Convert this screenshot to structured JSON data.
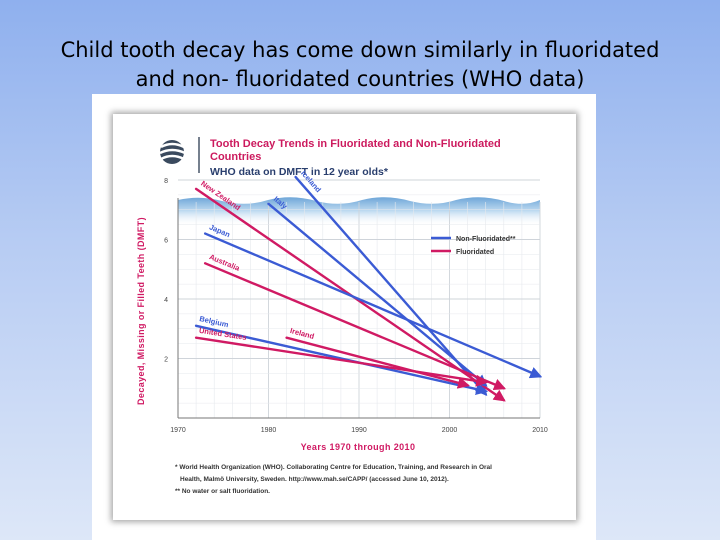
{
  "slide": {
    "title_line1": "Child tooth decay has come down similarly in fluoridated",
    "title_line2": "and non- fluoridated countries (WHO data)"
  },
  "figure": {
    "logo_icon": "globe-logo-icon",
    "title_line1": "Tooth Decay Trends in Fluoridated and Non-Fluoridated",
    "title_line2": "Countries",
    "subtitle": "WHO data on DMFT in 12 year olds*",
    "footnote_line1": "* World Health Organization (WHO). Collaborating Centre for Education, Training, and Research in Oral",
    "footnote_line2": "Health, Malmö University, Sweden. http://www.mah.se/CAPP/ (accessed June 10, 2012).",
    "footnote_line3": "** No water or salt fluoridation."
  },
  "chart_data": {
    "type": "line",
    "title": "Tooth Decay Trends in Fluoridated and Non-Fluoridated Countries",
    "subtitle": "WHO data on DMFT in 12 year olds*",
    "xlabel": "Years 1970 through 2010",
    "ylabel": "Decayed, Missing or Filled Teeth (DMFT)",
    "xlim": [
      1970,
      2010
    ],
    "ylim": [
      0,
      8
    ],
    "x_ticks": [
      "1970",
      "1980",
      "1990",
      "2000",
      "2010"
    ],
    "y_ticks": [
      "2",
      "4",
      "6",
      "8"
    ],
    "grid": true,
    "legend_position": "right",
    "legend": [
      {
        "label": "Non-Fluoridated**",
        "color": "#3b5bd4"
      },
      {
        "label": "Fluoridated",
        "color": "#d01a63"
      }
    ],
    "series": [
      {
        "name": "Iceland",
        "group": "Non-Fluoridated**",
        "color": "#3b5bd4",
        "x": [
          1983,
          2004
        ],
        "y": [
          8.1,
          0.8
        ]
      },
      {
        "name": "New Zealand",
        "group": "Fluoridated",
        "color": "#d01a63",
        "x": [
          1972,
          2006
        ],
        "y": [
          7.7,
          0.6
        ]
      },
      {
        "name": "Italy",
        "group": "Non-Fluoridated**",
        "color": "#3b5bd4",
        "x": [
          1980,
          2004
        ],
        "y": [
          7.2,
          1.1
        ]
      },
      {
        "name": "Japan",
        "group": "Non-Fluoridated**",
        "color": "#3b5bd4",
        "x": [
          1973,
          2010
        ],
        "y": [
          6.2,
          1.4
        ]
      },
      {
        "name": "Australia",
        "group": "Fluoridated",
        "color": "#d01a63",
        "x": [
          1973,
          2006
        ],
        "y": [
          5.2,
          1.0
        ]
      },
      {
        "name": "Belgium",
        "group": "Non-Fluoridated**",
        "color": "#3b5bd4",
        "x": [
          1972,
          2004
        ],
        "y": [
          3.1,
          0.9
        ]
      },
      {
        "name": "United States",
        "group": "Fluoridated",
        "color": "#d01a63",
        "x": [
          1972,
          2004
        ],
        "y": [
          2.7,
          1.2
        ]
      },
      {
        "name": "Ireland",
        "group": "Fluoridated",
        "color": "#d01a63",
        "x": [
          1982,
          2002
        ],
        "y": [
          2.7,
          1.1
        ]
      }
    ]
  }
}
